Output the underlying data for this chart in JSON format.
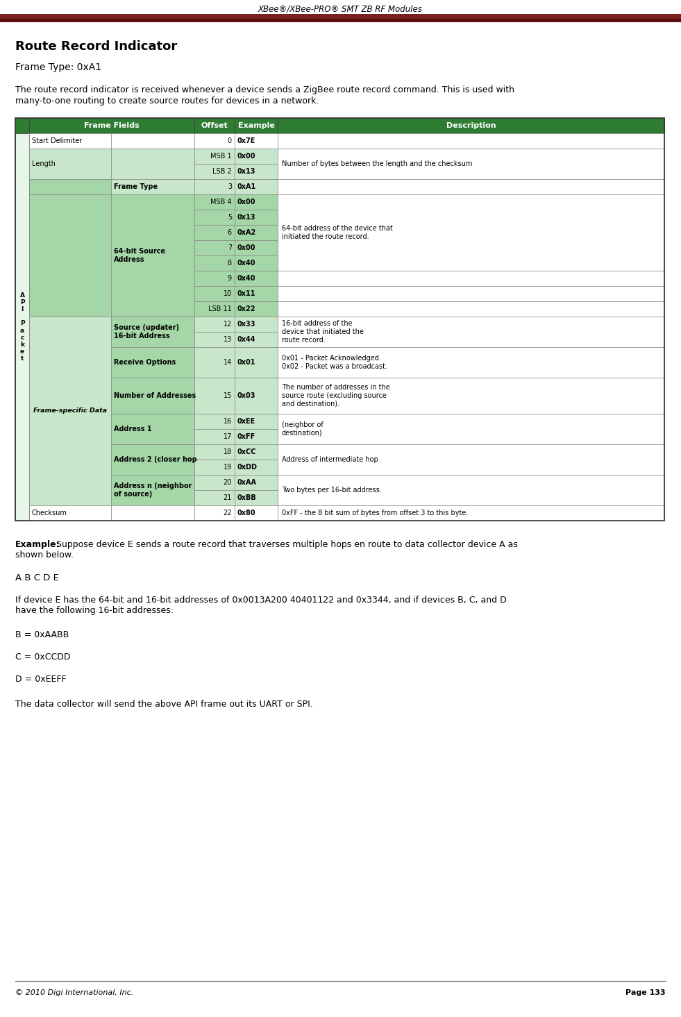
{
  "page_title": "XBee®/XBee-PRO® SMT ZB RF Modules",
  "header_bar_color": "#7B2020",
  "header_bar_color2": "#5C1010",
  "section_title": "Route Record Indicator",
  "frame_type_label": "Frame Type: 0xA1",
  "desc_line1": "The route record indicator is received whenever a device sends a ZigBee route record command. This is used with",
  "desc_line2": "many-to-one routing to create source routes for devices in a network.",
  "table_header_bg": "#2E7D32",
  "table_light_green": "#C8E6C9",
  "table_medium_green": "#A5D6A7",
  "table_white": "#FFFFFF",
  "api_label": "A\nP\nI\n \nP\na\nc\nk\ne\nt",
  "offsets": [
    "0",
    "MSB 1",
    "LSB 2",
    "3",
    "MSB 4",
    "5",
    "6",
    "7",
    "8",
    "9",
    "10",
    "LSB 11",
    "12",
    "13",
    "14",
    "15",
    "16",
    "17",
    "18",
    "19",
    "20",
    "21",
    "22"
  ],
  "examples": [
    "0x7E",
    "0x00",
    "0x13",
    "0xA1",
    "0x00",
    "0x13",
    "0xA2",
    "0x00",
    "0x40",
    "0x40",
    "0x11",
    "0x22",
    "0x33",
    "0x44",
    "0x01",
    "0x03",
    "0xEE",
    "0xFF",
    "0xCC",
    "0xDD",
    "0xAA",
    "0xBB",
    "0x80"
  ],
  "row_bgs": [
    "white",
    "light",
    "light",
    "light",
    "medium",
    "medium",
    "medium",
    "medium",
    "medium",
    "medium",
    "medium",
    "medium",
    "light",
    "light",
    "light",
    "light",
    "light",
    "light",
    "light",
    "light",
    "light",
    "light",
    "white"
  ],
  "desc_row1": "Number of bytes between the length and the checksum",
  "desc_row4": "64-bit address of the device that\ninitiated the route record.",
  "desc_row12": "16-bit address of the\ndevice that initiated the\nroute record.",
  "desc_row14": "0x01 - Packet Acknowledged.\n0x02 - Packet was a broadcast.",
  "desc_row15": "The number of addresses in the\nsource route (excluding source\nand destination).",
  "desc_row16": "(neighbor of\ndestination)",
  "desc_row18": "Address of intermediate hop",
  "desc_row20": "Two bytes per 16-bit address.",
  "desc_row22": "0xFF - the 8 bit sum of bytes from offset 3 to this byte.",
  "example_bold": "Example:",
  "example_rest": " Suppose device E sends a route record that traverses multiple hops en route to data collector device A as",
  "example_line2": "shown below.",
  "abcde": "A B C D E",
  "if_line1": "If device E has the 64-bit and 16-bit addresses of 0x0013A200 40401122 and 0x3344, and if devices B, C, and D",
  "if_line2": "have the following 16-bit addresses:",
  "b_addr": "B = 0xAABB",
  "c_addr": "C = 0xCCDD",
  "d_addr": "D = 0xEEFF",
  "footer_text": "The data collector will send the above API frame out its UART or SPI.",
  "copyright": "© 2010 Digi International, Inc.",
  "page_num": "Page 133",
  "bg_color": "#FFFFFF"
}
